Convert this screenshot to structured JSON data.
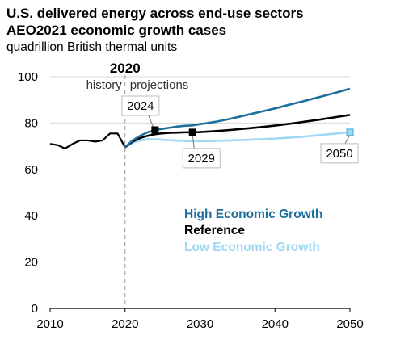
{
  "chart_data": {
    "type": "line",
    "title": "U.S. delivered energy across end-use sectors",
    "subtitle": "AEO2021 economic growth cases",
    "units": "quadrillion British thermal units",
    "xlabel": "",
    "ylabel": "",
    "xlim": [
      2010,
      2050
    ],
    "ylim": [
      0,
      100
    ],
    "x_ticks": [
      "2010",
      "2020",
      "2030",
      "2040",
      "2050"
    ],
    "y_ticks": [
      "0",
      "20",
      "40",
      "60",
      "80",
      "100"
    ],
    "grid": "horizontal at 80 and 100",
    "divider": {
      "year_label": "2020",
      "left_label": "history",
      "right_label": "projections"
    },
    "history": {
      "x": [
        2010,
        2011,
        2012,
        2013,
        2014,
        2015,
        2016,
        2017,
        2018,
        2019,
        2020
      ],
      "y": [
        71,
        70.5,
        69,
        71,
        72.5,
        72.5,
        72,
        72.5,
        75.5,
        75.5,
        69.5
      ]
    },
    "x": [
      2020,
      2021,
      2022,
      2023,
      2024,
      2025,
      2026,
      2027,
      2028,
      2029,
      2030,
      2032,
      2034,
      2036,
      2038,
      2040,
      2042,
      2044,
      2046,
      2048,
      2050
    ],
    "series": [
      {
        "name": "High Economic Growth",
        "color": "#1f6f9d",
        "values": [
          69.5,
          72.5,
          74.5,
          76,
          77,
          77.5,
          78,
          78.5,
          78.8,
          79,
          79.5,
          80.5,
          81.8,
          83.3,
          84.8,
          86.3,
          88,
          89.6,
          91.3,
          93,
          94.8
        ]
      },
      {
        "name": "Reference",
        "color": "#000000",
        "values": [
          69.5,
          72,
          73.5,
          74.5,
          75.2,
          75.6,
          75.8,
          75.9,
          76,
          76,
          76.1,
          76.5,
          77,
          77.6,
          78.2,
          78.9,
          79.7,
          80.6,
          81.5,
          82.5,
          83.5
        ]
      },
      {
        "name": "Low Economic Growth",
        "color": "#9fd8f2",
        "values": [
          69.5,
          71.5,
          72.5,
          73,
          73,
          72.8,
          72.6,
          72.4,
          72.3,
          72.2,
          72.2,
          72.3,
          72.5,
          72.7,
          73,
          73.3,
          73.7,
          74.2,
          74.8,
          75.4,
          76
        ]
      }
    ],
    "callouts": [
      {
        "label": "2024",
        "year": 2024,
        "series": "High Economic Growth"
      },
      {
        "label": "2029",
        "year": 2029,
        "series": "Reference"
      },
      {
        "label": "2050",
        "year": 2050,
        "series": "Low Economic Growth"
      }
    ]
  }
}
